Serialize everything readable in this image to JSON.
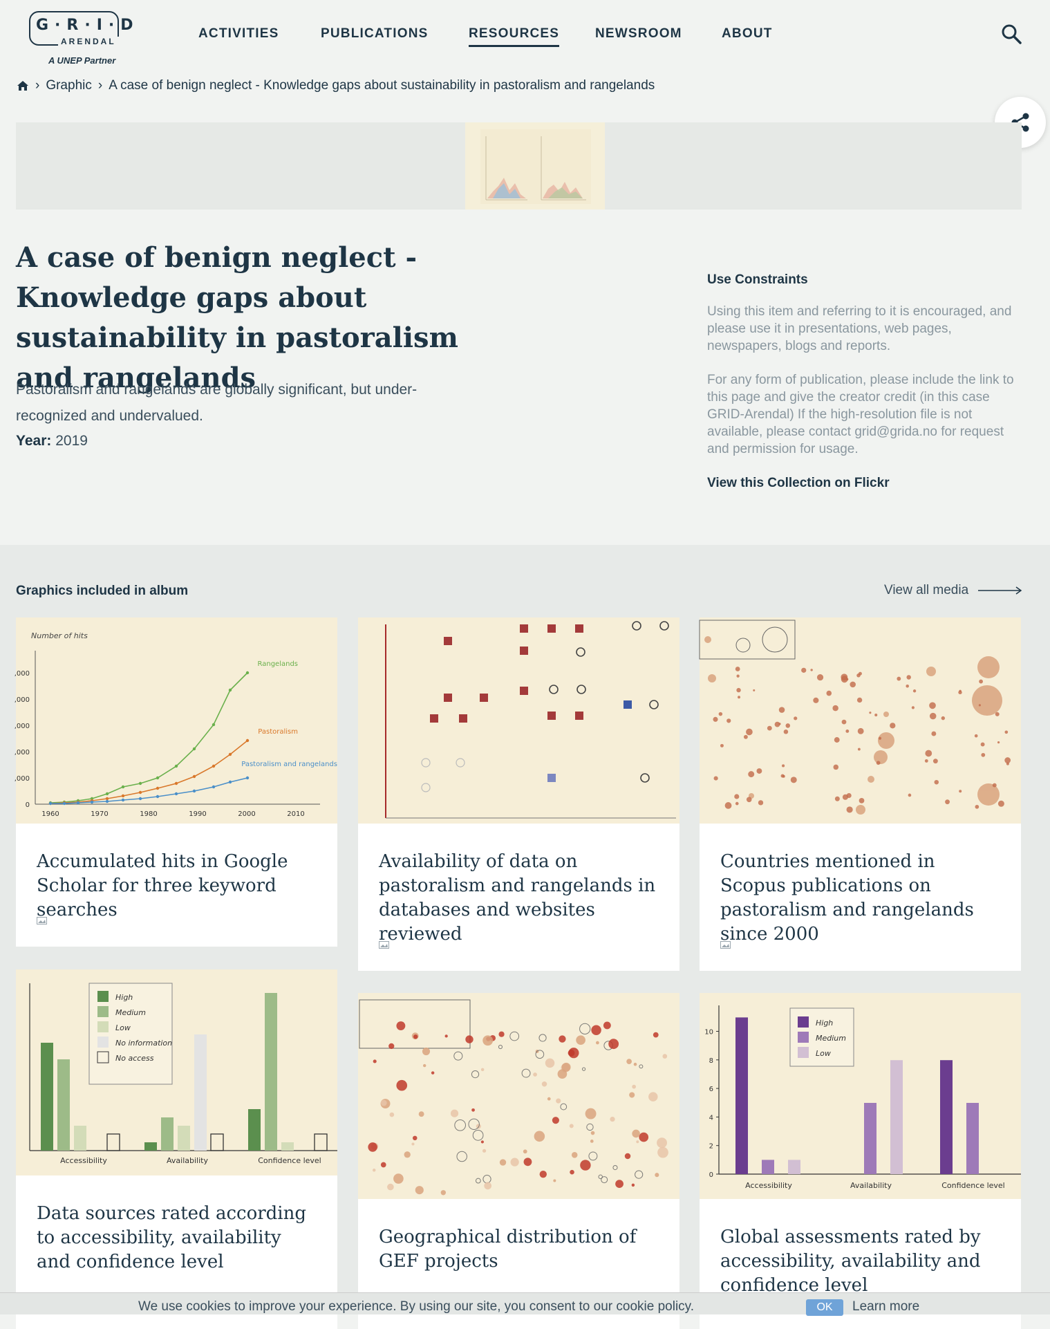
{
  "header": {
    "logo_text": "G·R·I·D",
    "logo_sub": "ARENDAL",
    "logo_partner": "A UNEP Partner",
    "nav": [
      {
        "label": "ACTIVITIES"
      },
      {
        "label": "PUBLICATIONS"
      },
      {
        "label": "RESOURCES"
      },
      {
        "label": "NEWSROOM"
      },
      {
        "label": "ABOUT"
      }
    ],
    "active_nav": "RESOURCES"
  },
  "breadcrumb": {
    "items": [
      "Graphic",
      "A case of benign neglect - Knowledge gaps about sustainability in pastoralism and rangelands"
    ]
  },
  "main": {
    "title": "A case of benign neglect - Knowledge gaps about sustainability in pastoralism and rangelands",
    "description": "Pastoralism and rangelands are globally significant, but under-recognized and undervalued.",
    "year_label": "Year:",
    "year_value": "2019"
  },
  "constraints": {
    "heading": "Use Constraints",
    "p1": "Using this item and referring to it is encouraged, and please use it in presentations, web pages, newspapers, blogs and reports.",
    "p2": "For any form of publication, please include the link to this page and give the creator credit (in this case GRID-Arendal) If the high-resolution file is not available, please contact grid@grida.no for request and permission for usage.",
    "flickr_link": "View this Collection on Flickr"
  },
  "album": {
    "heading": "Graphics included in album",
    "view_all": "View all media",
    "cards": [
      {
        "title": "Accumulated hits in Google Scholar for three keyword searches"
      },
      {
        "title": "Availability of data on pastoralism and rangelands in databases and websites reviewed"
      },
      {
        "title": "Countries mentioned in Scopus publications on pastoralism and rangelands since 2000"
      },
      {
        "title": "Data sources rated according to accessibility, availability and confidence level"
      },
      {
        "title": "Geographical distribution of GEF projects"
      },
      {
        "title": "Global assessments rated by accessibility, availability and confidence level"
      }
    ]
  },
  "thumbs": {
    "t1": {
      "ylabel": "Number of hits",
      "yticks": [
        "0",
        ",000",
        ",000",
        ",000",
        ",000",
        ",000"
      ],
      "xticks": [
        "1960",
        "1970",
        "1980",
        "1990",
        "2000",
        "2010"
      ],
      "series": [
        "Rangelands",
        "Pastoralism",
        "Pastoralism and rangelands"
      ]
    },
    "t4": {
      "legend": [
        "High",
        "Medium",
        "Low",
        "No information",
        "No access"
      ],
      "groups": [
        "Accessibility",
        "Availability",
        "Confidence level"
      ]
    },
    "t6": {
      "legend": [
        "High",
        "Medium",
        "Low"
      ],
      "yticks": [
        "0",
        "2",
        "4",
        "6",
        "8",
        "10"
      ],
      "groups": [
        "Accessibility",
        "Availability",
        "Confidence level"
      ]
    }
  },
  "cookie": {
    "text": "We use cookies to improve your experience. By using our site, you consent to our cookie policy.",
    "ok": "OK",
    "more": "Learn more"
  },
  "colors": {
    "primary": "#1e3545",
    "green": "#6ab04c",
    "orange": "#d9782b",
    "blue": "#4a8fc9",
    "purple": "#6b3d8f"
  }
}
